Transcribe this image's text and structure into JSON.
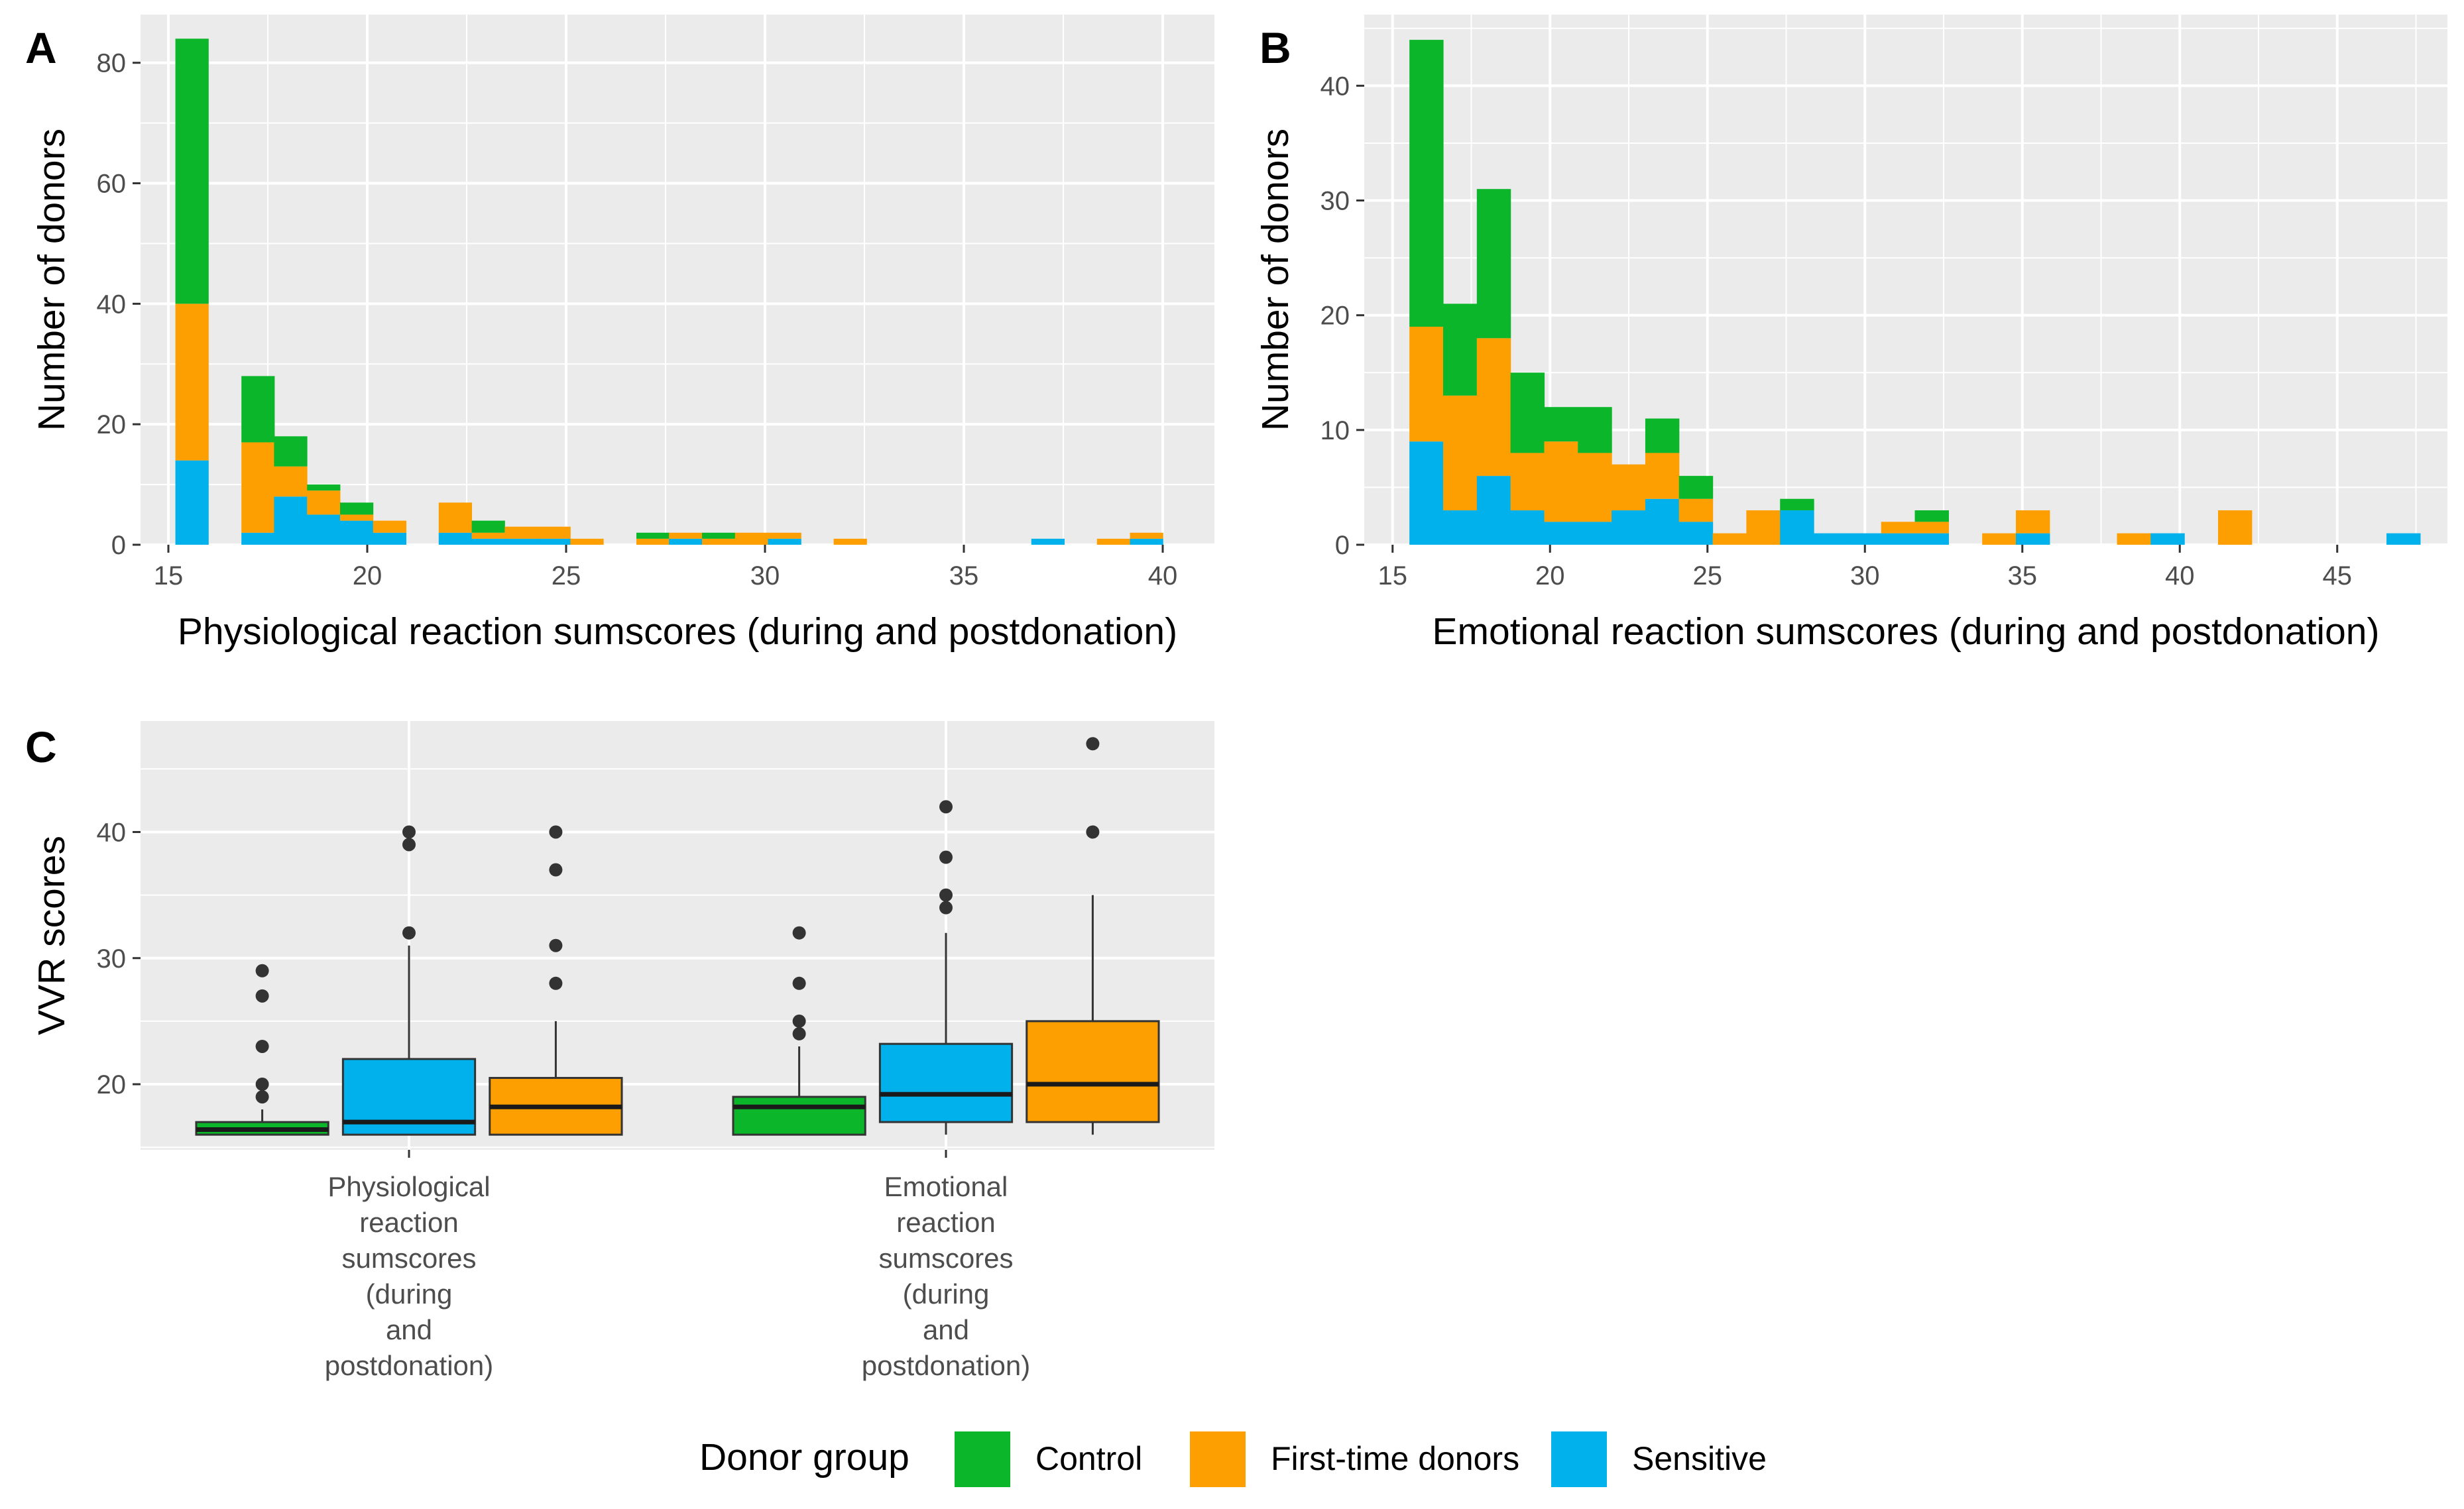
{
  "colors": {
    "Control": "#0CB62B",
    "First-time donors": "#FE9F01",
    "Sensitive": "#01B1EB",
    "panel_bg": "#EBEBEB",
    "grid": "#FFFFFF",
    "axis_text": "#4D4D4D",
    "outlier": "#333333"
  },
  "chart_data": [
    {
      "panel": "A",
      "type": "bar",
      "stacked": true,
      "xlabel": "Physiological reaction sumscores (during and postdonation)",
      "ylabel": "Number of donors",
      "xlim": [
        14.3,
        41.3
      ],
      "ylim": [
        0,
        88
      ],
      "xticks": [
        15,
        20,
        25,
        30,
        35,
        40
      ],
      "yticks": [
        0,
        20,
        40,
        60,
        80
      ],
      "bin_width": 0.827,
      "bins": [
        {
          "x": 15.59,
          "Sensitive": 14,
          "First-time donors": 26,
          "Control": 44
        },
        {
          "x": 17.25,
          "Sensitive": 2,
          "First-time donors": 15,
          "Control": 11
        },
        {
          "x": 18.07,
          "Sensitive": 8,
          "First-time donors": 5,
          "Control": 5
        },
        {
          "x": 18.9,
          "Sensitive": 5,
          "First-time donors": 4,
          "Control": 1
        },
        {
          "x": 19.73,
          "Sensitive": 4,
          "First-time donors": 1,
          "Control": 2
        },
        {
          "x": 20.56,
          "Sensitive": 2,
          "First-time donors": 2,
          "Control": 0
        },
        {
          "x": 22.21,
          "Sensitive": 2,
          "First-time donors": 5,
          "Control": 0
        },
        {
          "x": 23.04,
          "Sensitive": 1,
          "First-time donors": 1,
          "Control": 2
        },
        {
          "x": 23.87,
          "Sensitive": 1,
          "First-time donors": 2,
          "Control": 0
        },
        {
          "x": 24.69,
          "Sensitive": 1,
          "First-time donors": 2,
          "Control": 0
        },
        {
          "x": 25.52,
          "Sensitive": 0,
          "First-time donors": 1,
          "Control": 0
        },
        {
          "x": 27.18,
          "Sensitive": 0,
          "First-time donors": 1,
          "Control": 1
        },
        {
          "x": 28.0,
          "Sensitive": 1,
          "First-time donors": 1,
          "Control": 0
        },
        {
          "x": 28.83,
          "Sensitive": 0,
          "First-time donors": 1,
          "Control": 1
        },
        {
          "x": 29.66,
          "Sensitive": 0,
          "First-time donors": 2,
          "Control": 0
        },
        {
          "x": 30.49,
          "Sensitive": 1,
          "First-time donors": 1,
          "Control": 0
        },
        {
          "x": 32.14,
          "Sensitive": 0,
          "First-time donors": 1,
          "Control": 0
        },
        {
          "x": 37.11,
          "Sensitive": 1,
          "First-time donors": 0,
          "Control": 0
        },
        {
          "x": 38.76,
          "Sensitive": 0,
          "First-time donors": 1,
          "Control": 0
        },
        {
          "x": 39.59,
          "Sensitive": 1,
          "First-time donors": 1,
          "Control": 0
        }
      ]
    },
    {
      "panel": "B",
      "type": "bar",
      "stacked": true,
      "xlabel": "Emotional reaction sumscores (during and postdonation)",
      "ylabel": "Number of donors",
      "xlim": [
        14.1,
        48.5
      ],
      "ylim": [
        0,
        46.2
      ],
      "xticks": [
        15,
        20,
        25,
        30,
        35,
        40,
        45
      ],
      "yticks": [
        0,
        10,
        20,
        30,
        40
      ],
      "bin_width": 1.07,
      "bins": [
        {
          "x": 16.07,
          "Sensitive": 9,
          "First-time donors": 10,
          "Control": 25
        },
        {
          "x": 17.14,
          "Sensitive": 3,
          "First-time donors": 10,
          "Control": 8
        },
        {
          "x": 18.21,
          "Sensitive": 6,
          "First-time donors": 12,
          "Control": 13
        },
        {
          "x": 19.28,
          "Sensitive": 3,
          "First-time donors": 5,
          "Control": 7
        },
        {
          "x": 20.35,
          "Sensitive": 2,
          "First-time donors": 7,
          "Control": 3
        },
        {
          "x": 21.42,
          "Sensitive": 2,
          "First-time donors": 6,
          "Control": 4
        },
        {
          "x": 22.49,
          "Sensitive": 3,
          "First-time donors": 4,
          "Control": 0
        },
        {
          "x": 23.56,
          "Sensitive": 4,
          "First-time donors": 4,
          "Control": 3
        },
        {
          "x": 24.63,
          "Sensitive": 2,
          "First-time donors": 2,
          "Control": 2
        },
        {
          "x": 25.7,
          "Sensitive": 0,
          "First-time donors": 1,
          "Control": 0
        },
        {
          "x": 26.77,
          "Sensitive": 0,
          "First-time donors": 3,
          "Control": 0
        },
        {
          "x": 27.84,
          "Sensitive": 3,
          "First-time donors": 0,
          "Control": 1
        },
        {
          "x": 28.91,
          "Sensitive": 1,
          "First-time donors": 0,
          "Control": 0
        },
        {
          "x": 29.98,
          "Sensitive": 1,
          "First-time donors": 0,
          "Control": 0
        },
        {
          "x": 31.05,
          "Sensitive": 1,
          "First-time donors": 1,
          "Control": 0
        },
        {
          "x": 32.12,
          "Sensitive": 1,
          "First-time donors": 1,
          "Control": 1
        },
        {
          "x": 34.26,
          "Sensitive": 0,
          "First-time donors": 1,
          "Control": 0
        },
        {
          "x": 35.33,
          "Sensitive": 1,
          "First-time donors": 2,
          "Control": 0
        },
        {
          "x": 38.54,
          "Sensitive": 0,
          "First-time donors": 1,
          "Control": 0
        },
        {
          "x": 39.61,
          "Sensitive": 1,
          "First-time donors": 0,
          "Control": 0
        },
        {
          "x": 41.75,
          "Sensitive": 0,
          "First-time donors": 3,
          "Control": 0
        },
        {
          "x": 47.1,
          "Sensitive": 1,
          "First-time donors": 0,
          "Control": 0
        }
      ]
    },
    {
      "panel": "C",
      "type": "box",
      "xlabel": "",
      "ylabel": "VVR scores",
      "ylim": [
        14.8,
        48.8
      ],
      "yticks": [
        20,
        30,
        40
      ],
      "categories": [
        {
          "label_lines": [
            "Physiological",
            "reaction",
            "sumscores",
            "(during",
            "and",
            "postdonation)"
          ]
        },
        {
          "label_lines": [
            "Emotional",
            "reaction",
            "sumscores",
            "(during",
            "and",
            "postdonation)"
          ]
        }
      ],
      "boxes": [
        {
          "category": 0,
          "group": "Control",
          "lower": 16,
          "q1": 16,
          "median": 16.4,
          "q3": 17,
          "upper": 18,
          "outliers": [
            19,
            20,
            23,
            27,
            29
          ]
        },
        {
          "category": 0,
          "group": "Sensitive",
          "lower": 16,
          "q1": 16,
          "median": 17,
          "q3": 22,
          "upper": 31,
          "outliers": [
            32,
            39,
            40
          ]
        },
        {
          "category": 0,
          "group": "First-time donors",
          "lower": 16,
          "q1": 16,
          "median": 18.2,
          "q3": 20.5,
          "upper": 25,
          "outliers": [
            28,
            31,
            37,
            40
          ]
        },
        {
          "category": 1,
          "group": "Control",
          "lower": 16,
          "q1": 16,
          "median": 18.2,
          "q3": 19,
          "upper": 23,
          "outliers": [
            24,
            25,
            28,
            32
          ]
        },
        {
          "category": 1,
          "group": "Sensitive",
          "lower": 16,
          "q1": 17,
          "median": 19.2,
          "q3": 23.2,
          "upper": 32,
          "outliers": [
            34,
            35,
            38,
            42
          ]
        },
        {
          "category": 1,
          "group": "First-time donors",
          "lower": 16,
          "q1": 17,
          "median": 20,
          "q3": 25,
          "upper": 35,
          "outliers": [
            40,
            47
          ]
        }
      ]
    }
  ],
  "legend": {
    "title": "Donor group",
    "items": [
      "Control",
      "First-time donors",
      "Sensitive"
    ]
  }
}
